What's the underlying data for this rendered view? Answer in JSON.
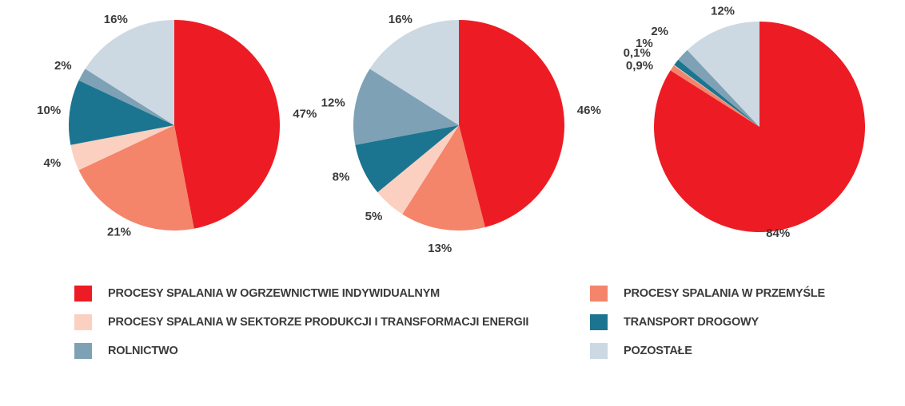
{
  "chart_data": [
    {
      "type": "pie",
      "start": "top-clockwise",
      "slices": [
        {
          "category": "PROCESY SPALANIA W OGRZEWNICTWIE INDYWIDUALNYM",
          "value": 47,
          "label": "47%",
          "color": "#ed1c24"
        },
        {
          "category": "PROCESY SPALANIA W PRZEMYŚLE",
          "value": 21,
          "label": "21%",
          "color": "#f4846a"
        },
        {
          "category": "PROCESY SPALANIA W SEKTORZE PRODUKCJI I TRANSFORMACJI ENERGII",
          "value": 4,
          "label": "4%",
          "color": "#fbd0c1"
        },
        {
          "category": "TRANSPORT DROGOWY",
          "value": 10,
          "label": "10%",
          "color": "#1b7590"
        },
        {
          "category": "ROLNICTWO",
          "value": 2,
          "label": "2%",
          "color": "#7ea1b5"
        },
        {
          "category": "POZOSTAŁE",
          "value": 16,
          "label": "16%",
          "color": "#ccd9e3"
        }
      ]
    },
    {
      "type": "pie",
      "start": "top-clockwise",
      "slices": [
        {
          "category": "PROCESY SPALANIA W OGRZEWNICTWIE INDYWIDUALNYM",
          "value": 46,
          "label": "46%",
          "color": "#ed1c24"
        },
        {
          "category": "PROCESY SPALANIA W PRZEMYŚLE",
          "value": 13,
          "label": "13%",
          "color": "#f4846a"
        },
        {
          "category": "PROCESY SPALANIA W SEKTORZE PRODUKCJI I TRANSFORMACJI ENERGII",
          "value": 5,
          "label": "5%",
          "color": "#fbd0c1"
        },
        {
          "category": "TRANSPORT DROGOWY",
          "value": 8,
          "label": "8%",
          "color": "#1b7590"
        },
        {
          "category": "ROLNICTWO",
          "value": 12,
          "label": "12%",
          "color": "#7ea1b5"
        },
        {
          "category": "POZOSTAŁE",
          "value": 16,
          "label": "16%",
          "color": "#ccd9e3"
        }
      ]
    },
    {
      "type": "pie",
      "start": "top-clockwise",
      "slices": [
        {
          "category": "PROCESY SPALANIA W OGRZEWNICTWIE INDYWIDUALNYM",
          "value": 84,
          "label": "84%",
          "color": "#ed1c24"
        },
        {
          "category": "PROCESY SPALANIA W PRZEMYŚLE",
          "value": 0.9,
          "label": "0,9%",
          "color": "#f4846a"
        },
        {
          "category": "PROCESY SPALANIA W SEKTORZE PRODUKCJI I TRANSFORMACJI ENERGII",
          "value": 0.1,
          "label": "0,1%",
          "color": "#fbd0c1"
        },
        {
          "category": "TRANSPORT DROGOWY",
          "value": 1,
          "label": "1%",
          "color": "#1b7590"
        },
        {
          "category": "ROLNICTWO",
          "value": 2,
          "label": "2%",
          "color": "#7ea1b5"
        },
        {
          "category": "POZOSTAŁE",
          "value": 12,
          "label": "12%",
          "color": "#ccd9e3"
        }
      ]
    }
  ],
  "legend": {
    "items": [
      {
        "label": "PROCESY SPALANIA W OGRZEWNICTWIE INDYWIDUALNYM",
        "color": "#ed1c24"
      },
      {
        "label": "PROCESY SPALANIA W PRZEMYŚLE",
        "color": "#f4846a"
      },
      {
        "label": "PROCESY SPALANIA W SEKTORZE PRODUKCJI I TRANSFORMACJI ENERGII",
        "color": "#fbd0c1"
      },
      {
        "label": "TRANSPORT DROGOWY",
        "color": "#1b7590"
      },
      {
        "label": "ROLNICTWO",
        "color": "#7ea1b5"
      },
      {
        "label": "POZOSTAŁE",
        "color": "#ccd9e3"
      }
    ]
  }
}
